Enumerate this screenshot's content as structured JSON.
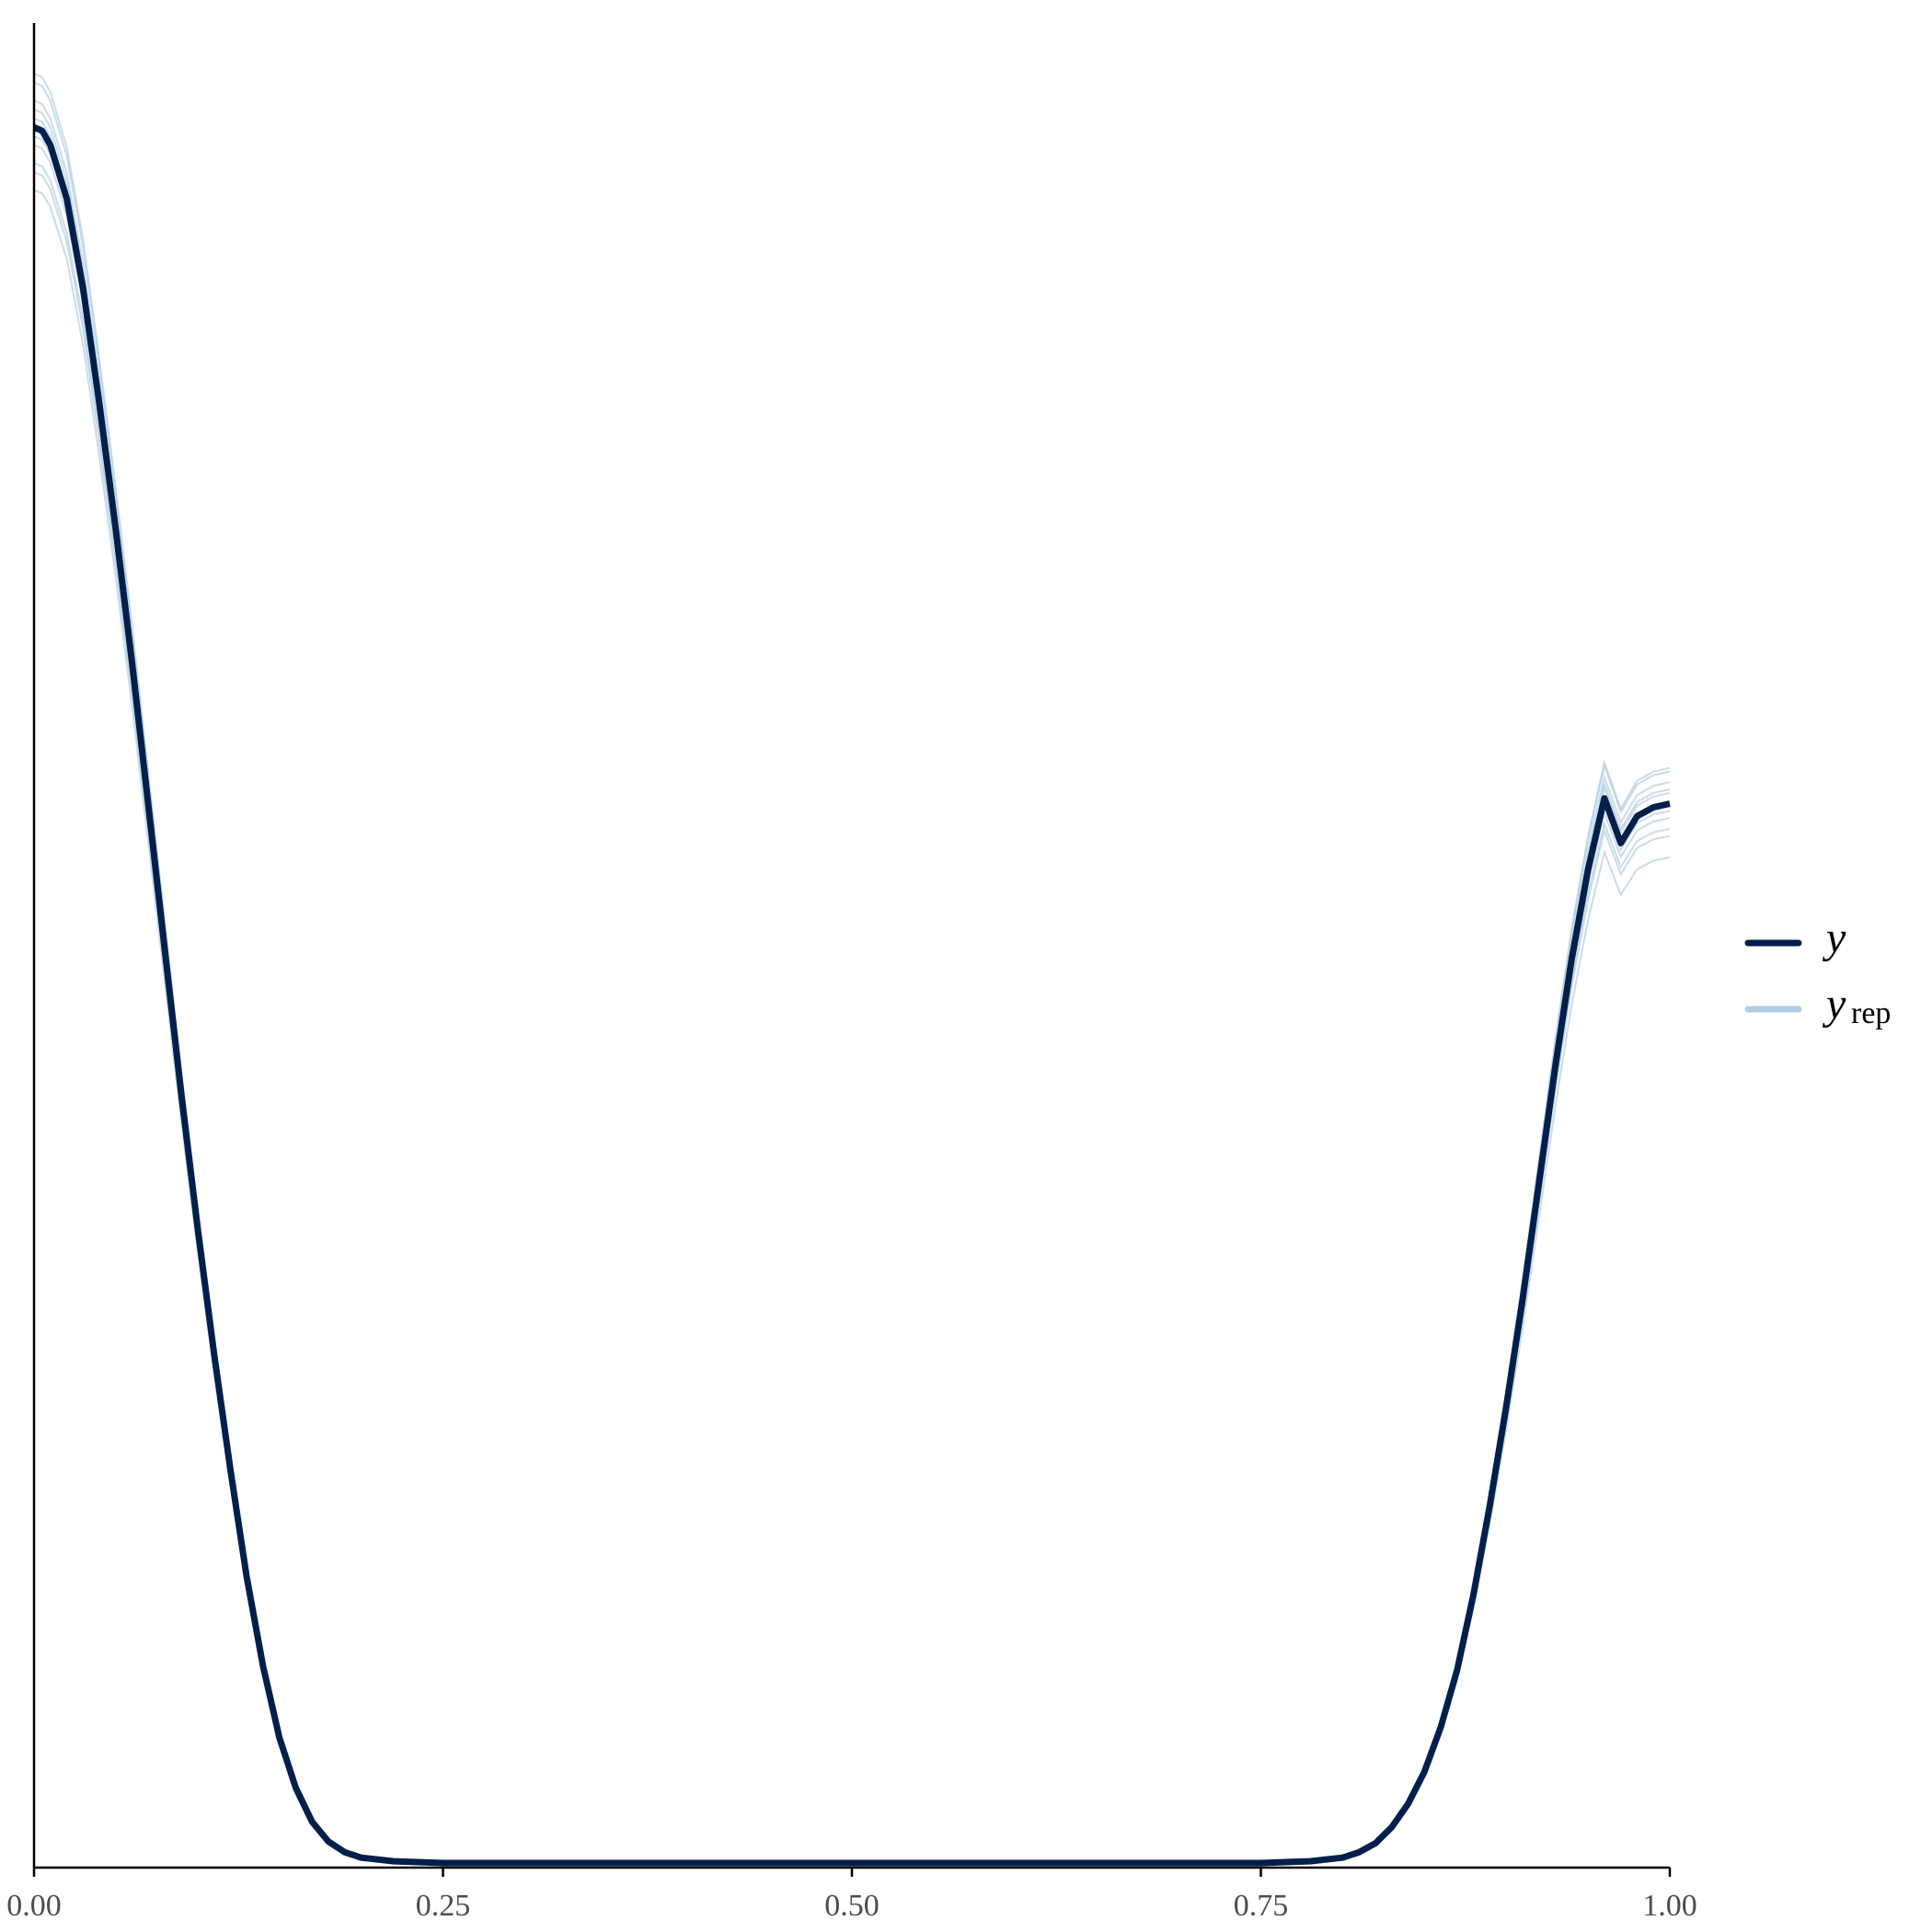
{
  "chart_data": {
    "type": "line",
    "title": "",
    "xlabel": "",
    "ylabel": "",
    "xlim": [
      0,
      1
    ],
    "ylim": [
      0,
      1
    ],
    "x_ticks": [
      "0.00",
      "0.25",
      "0.50",
      "0.75",
      "1.00"
    ],
    "x_tick_values": [
      0,
      0.25,
      0.5,
      0.75,
      1.0
    ],
    "grid": false,
    "legend_position": "right",
    "legend": [
      {
        "key": "y",
        "label": "y",
        "subscript": ""
      },
      {
        "key": "yrep",
        "label": "y",
        "subscript": "rep"
      }
    ],
    "colors": {
      "y": "#011f4b",
      "yrep": "#b3cde0"
    },
    "series": [
      {
        "name": "y",
        "x": [
          0,
          0.005,
          0.01,
          0.02,
          0.03,
          0.04,
          0.05,
          0.06,
          0.07,
          0.08,
          0.09,
          0.1,
          0.11,
          0.12,
          0.13,
          0.14,
          0.15,
          0.16,
          0.17,
          0.18,
          0.19,
          0.2,
          0.22,
          0.25,
          0.3,
          0.4,
          0.5,
          0.6,
          0.7,
          0.75,
          0.78,
          0.8,
          0.81,
          0.82,
          0.83,
          0.84,
          0.85,
          0.86,
          0.87,
          0.88,
          0.89,
          0.9,
          0.91,
          0.92,
          0.93,
          0.94,
          0.95,
          0.96,
          0.97,
          0.98,
          0.99,
          1.0
        ],
        "values": [
          0.97,
          0.968,
          0.96,
          0.93,
          0.88,
          0.815,
          0.745,
          0.67,
          0.59,
          0.51,
          0.43,
          0.355,
          0.285,
          0.22,
          0.16,
          0.11,
          0.07,
          0.042,
          0.023,
          0.012,
          0.006,
          0.003,
          0.001,
          0.0,
          0.0,
          0.0,
          0.0,
          0.0,
          0.0,
          0.0,
          0.001,
          0.003,
          0.006,
          0.011,
          0.02,
          0.033,
          0.051,
          0.076,
          0.108,
          0.15,
          0.2,
          0.255,
          0.315,
          0.38,
          0.445,
          0.505,
          0.555,
          0.595,
          0.57,
          0.585,
          0.59,
          0.592
        ]
      }
    ],
    "yrep_draws": [
      {
        "y0": 0.995,
        "y1": 0.604
      },
      {
        "y0": 0.985,
        "y1": 0.6
      },
      {
        "y0": 0.98,
        "y1": 0.61
      },
      {
        "y0": 0.975,
        "y1": 0.598
      },
      {
        "y0": 0.965,
        "y1": 0.588
      },
      {
        "y0": 0.96,
        "y1": 0.584
      },
      {
        "y0": 0.95,
        "y1": 0.578
      },
      {
        "y0": 0.945,
        "y1": 0.574
      },
      {
        "y0": 0.935,
        "y1": 0.562
      },
      {
        "y0": 1.0,
        "y1": 0.612
      }
    ]
  }
}
